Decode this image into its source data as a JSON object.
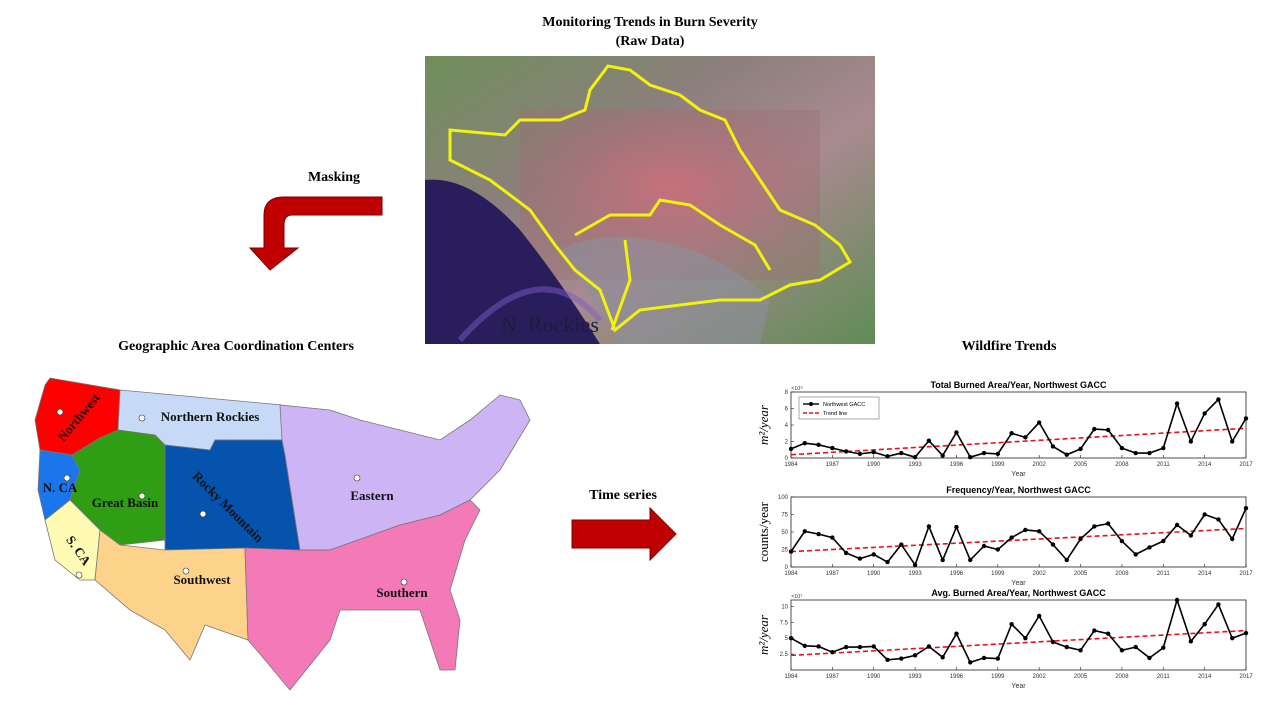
{
  "figure": {
    "top_title": "Monitoring Trends in Burn Severity",
    "top_subtitle": "(Raw Data)",
    "image_label": "N. Rockies",
    "masking_label": "Masking",
    "map_title": "Geographic Area Coordination Centers",
    "time_series_label": "Time series",
    "trends_title": "Wildfire Trends"
  },
  "map": {
    "regions": [
      {
        "name": "Northwest",
        "color": "#ff0000"
      },
      {
        "name": "Northern Rockies",
        "color": "#c6d9f7"
      },
      {
        "name": "N. CA",
        "color": "#1a76ea"
      },
      {
        "name": "Great Basin",
        "color": "#2f9e14"
      },
      {
        "name": "Rocky Mountain",
        "color": "#0653ad"
      },
      {
        "name": "S. CA",
        "color": "#fffab4"
      },
      {
        "name": "Southwest",
        "color": "#fdd38b"
      },
      {
        "name": "Eastern",
        "color": "#cdb5f5"
      },
      {
        "name": "Southern",
        "color": "#f47ab7"
      }
    ]
  },
  "chart_data": [
    {
      "type": "line",
      "title": "Total Burned Area/Year, Northwest GACC",
      "x_label": "Year",
      "y_label": "m²/year",
      "multiplier": "×10⁹",
      "x": [
        1984,
        1985,
        1986,
        1987,
        1988,
        1989,
        1990,
        1991,
        1992,
        1993,
        1994,
        1995,
        1996,
        1997,
        1998,
        1999,
        2000,
        2001,
        2002,
        2003,
        2004,
        2005,
        2006,
        2007,
        2008,
        2009,
        2010,
        2011,
        2012,
        2013,
        2014,
        2015,
        2016,
        2017
      ],
      "xlim": [
        1984,
        2017
      ],
      "xticks": [
        1984,
        1987,
        1990,
        1993,
        1996,
        1999,
        2002,
        2005,
        2008,
        2011,
        2014,
        2017
      ],
      "ylim": [
        0,
        8
      ],
      "yticks": [
        0,
        2,
        4,
        6,
        8
      ],
      "legend": "upper left",
      "series": [
        {
          "name": "Northwest GACC",
          "color": "#000000",
          "values": [
            1.1,
            1.8,
            1.6,
            1.2,
            0.8,
            0.5,
            0.7,
            0.2,
            0.6,
            0.1,
            2.1,
            0.3,
            3.1,
            0.1,
            0.6,
            0.5,
            3.0,
            2.5,
            4.3,
            1.4,
            0.4,
            1.1,
            3.5,
            3.4,
            1.2,
            0.6,
            0.6,
            1.2,
            6.6,
            2.0,
            5.4,
            7.1,
            2.0,
            4.8
          ]
        }
      ],
      "trend": {
        "name": "Trend line",
        "color": "#e8101a",
        "x": [
          1984,
          2017
        ],
        "values": [
          0.4,
          3.6
        ]
      }
    },
    {
      "type": "line",
      "title": "Frequency/Year, Northwest GACC",
      "x_label": "Year",
      "y_label": "counts/year",
      "x": [
        1984,
        1985,
        1986,
        1987,
        1988,
        1989,
        1990,
        1991,
        1992,
        1993,
        1994,
        1995,
        1996,
        1997,
        1998,
        1999,
        2000,
        2001,
        2002,
        2003,
        2004,
        2005,
        2006,
        2007,
        2008,
        2009,
        2010,
        2011,
        2012,
        2013,
        2014,
        2015,
        2016,
        2017
      ],
      "xlim": [
        1984,
        2017
      ],
      "xticks": [
        1984,
        1987,
        1990,
        1993,
        1996,
        1999,
        2002,
        2005,
        2008,
        2011,
        2014,
        2017
      ],
      "ylim": [
        0,
        100
      ],
      "yticks": [
        0,
        25,
        50,
        75,
        100
      ],
      "series": [
        {
          "color": "#000000",
          "values": [
            22,
            51,
            47,
            42,
            20,
            12,
            18,
            7,
            32,
            3,
            58,
            10,
            57,
            10,
            30,
            25,
            42,
            53,
            51,
            32,
            10,
            40,
            58,
            62,
            37,
            18,
            28,
            37,
            60,
            45,
            75,
            68,
            40,
            84
          ]
        }
      ],
      "trend": {
        "color": "#e8101a",
        "x": [
          1984,
          2017
        ],
        "values": [
          22,
          55
        ]
      }
    },
    {
      "type": "line",
      "title": "Avg. Burned Area/Year, Northwest GACC",
      "x_label": "Year",
      "y_label": "m²/year",
      "multiplier": "×10⁷",
      "x": [
        1984,
        1985,
        1986,
        1987,
        1988,
        1989,
        1990,
        1991,
        1992,
        1993,
        1994,
        1995,
        1996,
        1997,
        1998,
        1999,
        2000,
        2001,
        2002,
        2003,
        2004,
        2005,
        2006,
        2007,
        2008,
        2009,
        2010,
        2011,
        2012,
        2013,
        2014,
        2015,
        2016,
        2017
      ],
      "xlim": [
        1984,
        2017
      ],
      "xticks": [
        1984,
        1987,
        1990,
        1993,
        1996,
        1999,
        2002,
        2005,
        2008,
        2011,
        2014,
        2017
      ],
      "ylim": [
        0,
        11
      ],
      "yticks": [
        2.5,
        5,
        7.5,
        10
      ],
      "series": [
        {
          "color": "#000000",
          "values": [
            5.0,
            3.8,
            3.7,
            2.8,
            3.6,
            3.6,
            3.7,
            1.6,
            1.8,
            2.3,
            3.7,
            2.0,
            5.7,
            1.2,
            1.9,
            1.8,
            7.2,
            5.0,
            8.5,
            4.4,
            3.6,
            3.1,
            6.2,
            5.7,
            3.1,
            3.6,
            1.9,
            3.5,
            11.0,
            4.5,
            7.2,
            10.3,
            5.0,
            5.8
          ]
        }
      ],
      "trend": {
        "color": "#e8101a",
        "x": [
          1984,
          2017
        ],
        "values": [
          2.3,
          6.2
        ]
      }
    }
  ]
}
